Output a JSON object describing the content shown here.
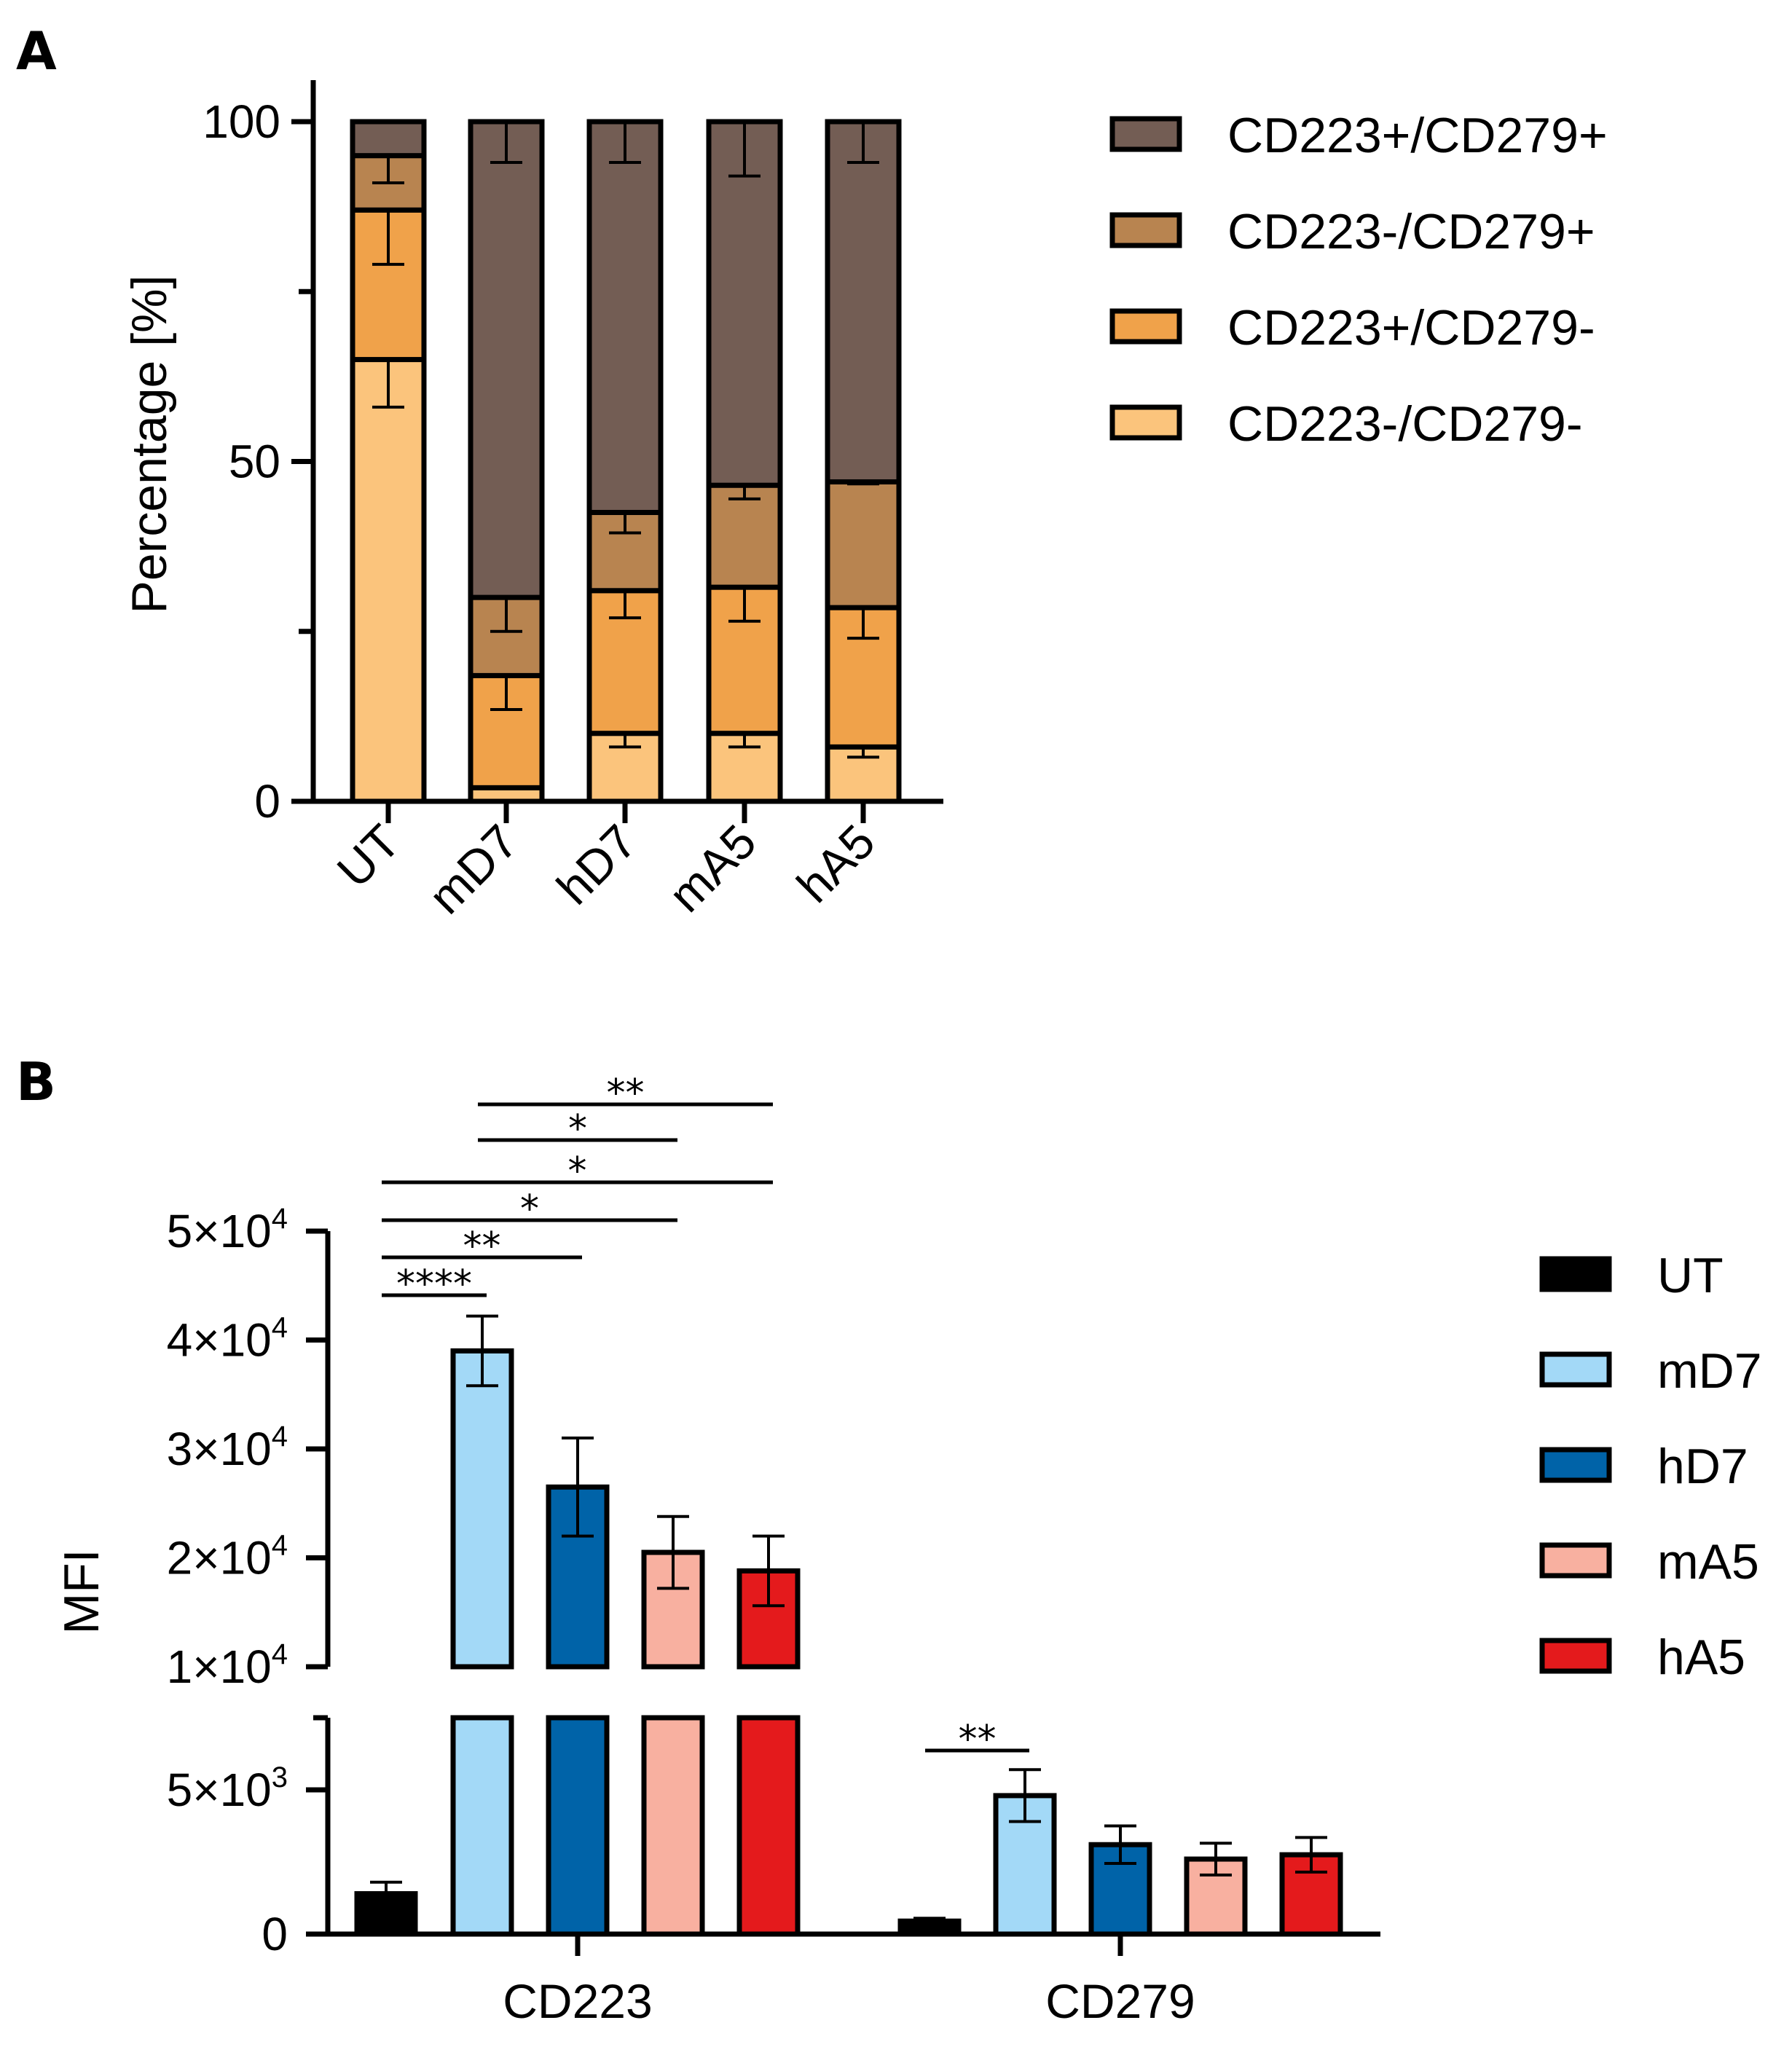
{
  "chart_data": [
    {
      "panel": "A",
      "type": "bar",
      "stacked": true,
      "ylabel": "Percentage [%]",
      "ylim": [
        0,
        100
      ],
      "yticks": [
        "0",
        "50",
        "100"
      ],
      "categories": [
        "UT",
        "mD7",
        "hD7",
        "mA5",
        "hA5"
      ],
      "series": [
        {
          "name": "CD223-/CD279-",
          "color": "#fbc47c",
          "values": [
            65,
            2,
            10,
            10,
            8
          ],
          "errors": [
            7,
            0,
            2,
            2,
            1.5
          ]
        },
        {
          "name": "CD223+/CD279-",
          "color": "#f0a24a",
          "values": [
            22,
            16.5,
            21,
            21.5,
            20.5
          ],
          "errors": [
            8,
            5,
            4,
            5,
            4.5
          ]
        },
        {
          "name": "CD223-/CD279+",
          "color": "#b88450",
          "values": [
            8,
            11.5,
            11.5,
            15,
            18.5
          ],
          "errors": [
            4,
            5,
            3,
            2,
            0.3
          ]
        },
        {
          "name": "CD223+/CD279+",
          "color": "#735d54",
          "values": [
            5,
            70,
            57.5,
            53.5,
            53
          ],
          "errors": [
            0,
            6,
            6,
            8,
            6
          ]
        }
      ],
      "legend_order": [
        "CD223+/CD279+",
        "CD223-/CD279+",
        "CD223+/CD279-",
        "CD223-/CD279-"
      ]
    },
    {
      "panel": "B",
      "type": "bar",
      "ylabel": "MFI",
      "axis_break": true,
      "lower_ylim": [
        0,
        7500
      ],
      "upper_ylim": [
        10000,
        50000
      ],
      "yticks_lower": [
        {
          "value": 0,
          "label": "0"
        },
        {
          "value": 5000,
          "mant": "5×10",
          "exp": "3"
        }
      ],
      "yticks_upper": [
        {
          "value": 10000,
          "mant": "1×10",
          "exp": "4"
        },
        {
          "value": 20000,
          "mant": "2×10",
          "exp": "4"
        },
        {
          "value": 30000,
          "mant": "3×10",
          "exp": "4"
        },
        {
          "value": 40000,
          "mant": "4×10",
          "exp": "4"
        },
        {
          "value": 50000,
          "mant": "5×10",
          "exp": "4"
        }
      ],
      "groups": [
        "CD223",
        "CD279"
      ],
      "series": [
        {
          "name": "UT",
          "color": "#000000",
          "values": [
            1400,
            450
          ],
          "errors": [
            400,
            100
          ]
        },
        {
          "name": "mD7",
          "color": "#a3d9f7",
          "values": [
            39000,
            4800
          ],
          "errors": [
            3200,
            900
          ]
        },
        {
          "name": "hD7",
          "color": "#0063a8",
          "values": [
            26500,
            3100
          ],
          "errors": [
            4500,
            650
          ]
        },
        {
          "name": "mA5",
          "color": "#f8b0a0",
          "values": [
            20500,
            2600
          ],
          "errors": [
            3300,
            550
          ]
        },
        {
          "name": "hA5",
          "color": "#e41a1c",
          "values": [
            18800,
            2750
          ],
          "errors": [
            3200,
            600
          ]
        }
      ],
      "significance": [
        {
          "group": 0,
          "from": 0,
          "to": 1,
          "label": "****"
        },
        {
          "group": 0,
          "from": 0,
          "to": 2,
          "label": "**"
        },
        {
          "group": 0,
          "from": 0,
          "to": 3,
          "label": "*"
        },
        {
          "group": 0,
          "from": 0,
          "to": 4,
          "label": "*"
        },
        {
          "group": 0,
          "from": 1,
          "to": 3,
          "label": "*"
        },
        {
          "group": 0,
          "from": 1,
          "to": 4,
          "label": "**"
        },
        {
          "group": 1,
          "from": 0,
          "to": 1,
          "label": "**"
        }
      ]
    }
  ],
  "panels": {
    "a_letter": "A",
    "b_letter": "B"
  }
}
